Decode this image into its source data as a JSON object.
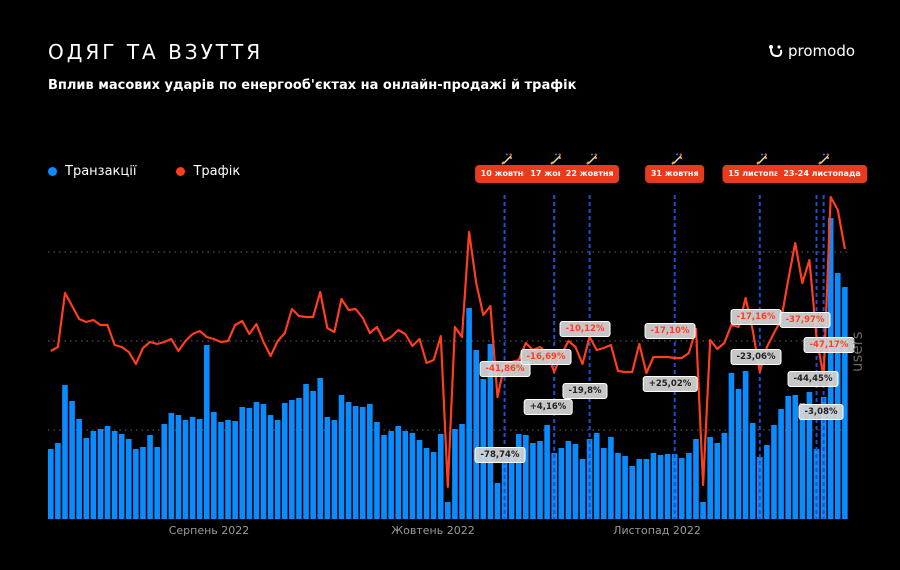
{
  "header": {
    "title": "ОДЯГ ТА ВЗУТТЯ",
    "subtitle": "Вплив масових ударів по енергооб'єктах на онлайн-продажі й трафік",
    "logo": "promodo"
  },
  "colors": {
    "transactions": "#0a8cff",
    "traffic": "#ff3d1f",
    "event": "#e83a1c",
    "event_line": "#1a4fd8"
  },
  "chart_data": {
    "type": "bar+line",
    "title": "Вплив масових ударів по енергооб'єктах на онлайн-продажі й трафік",
    "ylabel": "users",
    "x_tick_labels": [
      {
        "label": "Серпень 2022",
        "index": 22
      },
      {
        "label": "Жовтень 2022",
        "index": 54
      },
      {
        "label": "Листопад 2022",
        "index": 86
      }
    ],
    "ylim": [
      0,
      330
    ],
    "grid_values": [
      89,
      178,
      267
    ],
    "legend": {
      "position": "top-left",
      "entries": [
        "Транзакції",
        "Трафік"
      ]
    },
    "series": [
      {
        "name": "Транзакції",
        "type": "bar",
        "values": [
          70,
          76,
          134,
          118,
          100,
          81,
          88,
          90,
          93,
          88,
          85,
          80,
          70,
          72,
          84,
          72,
          95,
          106,
          104,
          99,
          102,
          100,
          174,
          107,
          97,
          99,
          98,
          112,
          111,
          117,
          115,
          104,
          99,
          116,
          119,
          121,
          135,
          128,
          141,
          102,
          99,
          124,
          117,
          113,
          112,
          115,
          97,
          84,
          88,
          93,
          88,
          86,
          79,
          71,
          67,
          85,
          17,
          90,
          95,
          211,
          169,
          140,
          175,
          36,
          56,
          69,
          85,
          84,
          76,
          78,
          94,
          66,
          71,
          78,
          75,
          60,
          80,
          86,
          71,
          82,
          66,
          63,
          53,
          60,
          60,
          66,
          64,
          65,
          65,
          61,
          66,
          80,
          17,
          82,
          76,
          86,
          146,
          130,
          148,
          96,
          62,
          74,
          94,
          110,
          123,
          124,
          116,
          127,
          70,
          122,
          301,
          246,
          232
        ]
      },
      {
        "name": "Трафік",
        "type": "line",
        "values": [
          168,
          172,
          226,
          213,
          200,
          197,
          199,
          194,
          194,
          174,
          172,
          167,
          155,
          171,
          177,
          175,
          177,
          180,
          168,
          178,
          185,
          188,
          182,
          180,
          177,
          178,
          194,
          198,
          185,
          195,
          177,
          163,
          178,
          186,
          210,
          203,
          202,
          202,
          227,
          191,
          187,
          220,
          209,
          210,
          201,
          186,
          192,
          178,
          182,
          189,
          185,
          173,
          180,
          156,
          159,
          183,
          32,
          192,
          182,
          287,
          236,
          204,
          213,
          122,
          155,
          157,
          159,
          176,
          169,
          172,
          166,
          147,
          164,
          178,
          172,
          155,
          182,
          169,
          171,
          174,
          148,
          147,
          147,
          175,
          146,
          162,
          162,
          162,
          161,
          161,
          166,
          190,
          34,
          179,
          170,
          176,
          194,
          192,
          221,
          189,
          147,
          172,
          186,
          199,
          239,
          276,
          236,
          259,
          182,
          142,
          322,
          309,
          270
        ]
      }
    ],
    "events": [
      {
        "label": "10 жовтня",
        "index": 64
      },
      {
        "label": "17 жовтня",
        "index": 71
      },
      {
        "label": "22 жовтня",
        "index": 76
      },
      {
        "label": "31 жовтня",
        "index": 88
      },
      {
        "label": "15 листопада",
        "index": 100
      },
      {
        "label": "23-24 листопада",
        "index": 108,
        "index2": 109
      }
    ],
    "annotations": [
      {
        "text": "-41,86%",
        "series": "Трафік"
      },
      {
        "text": "-78,74%",
        "series": "Транзакції"
      },
      {
        "text": "-16,69%",
        "series": "Трафік"
      },
      {
        "text": "+4,16%",
        "series": "Транзакції"
      },
      {
        "text": "-10,12%",
        "series": "Трафік"
      },
      {
        "text": "-19,8%",
        "series": "Транзакції"
      },
      {
        "text": "-17,10%",
        "series": "Трафік"
      },
      {
        "text": "+25,02%",
        "series": "Транзакції"
      },
      {
        "text": "-17,16%",
        "series": "Трафік"
      },
      {
        "text": "-23,06%",
        "series": "Транзакції"
      },
      {
        "text": "-37,97%",
        "series": "Трафік"
      },
      {
        "text": "-47,17%",
        "series": "Трафік"
      },
      {
        "text": "-44,45%",
        "series": "Транзакції"
      },
      {
        "text": "-3,08%",
        "series": "Транзакції"
      }
    ]
  }
}
